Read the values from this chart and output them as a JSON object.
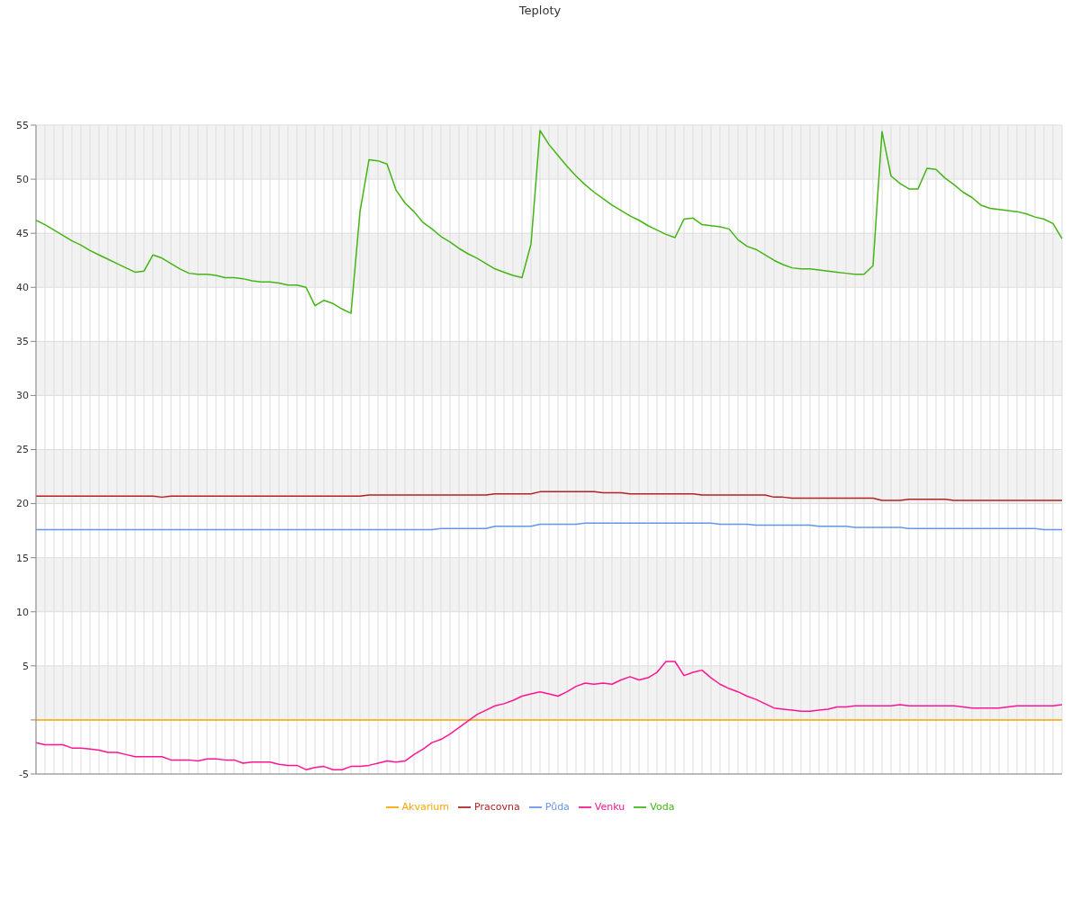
{
  "chart_data": {
    "type": "line",
    "title": "Teploty",
    "categories": [
      null,
      null,
      null,
      null,
      null,
      null,
      null,
      null,
      null,
      null,
      null,
      null,
      null,
      null,
      null,
      null,
      null,
      null,
      null,
      null,
      null,
      null,
      null,
      null,
      null,
      null,
      null,
      null,
      null,
      null,
      null,
      null,
      null,
      null,
      null,
      null,
      null,
      null,
      null,
      null,
      null,
      null,
      null,
      null,
      null,
      null,
      null,
      null,
      null,
      null,
      null,
      null,
      null,
      null,
      null,
      null,
      null,
      null,
      null,
      null,
      null,
      null,
      null,
      null,
      null,
      null,
      null,
      null,
      null,
      null,
      null,
      null,
      null,
      null,
      null,
      null,
      null,
      null,
      null,
      null,
      null,
      null,
      null,
      null,
      null,
      null,
      null,
      null,
      null,
      null,
      null,
      null,
      null,
      null,
      null,
      null,
      null,
      null,
      null,
      null,
      null,
      null,
      null,
      null,
      null,
      null,
      null,
      null,
      null,
      null,
      null,
      null,
      null,
      null,
      null
    ],
    "series": [
      {
        "name": "Půda",
        "color": "#6495ed",
        "values": [
          17.6,
          17.6,
          17.6,
          17.6,
          17.6,
          17.6,
          17.6,
          17.6,
          17.6,
          17.6,
          17.6,
          17.6,
          17.6,
          17.6,
          17.6,
          17.6,
          17.6,
          17.6,
          17.6,
          17.6,
          17.6,
          17.6,
          17.6,
          17.6,
          17.6,
          17.6,
          17.6,
          17.6,
          17.6,
          17.6,
          17.6,
          17.6,
          17.6,
          17.6,
          17.6,
          17.6,
          17.6,
          17.6,
          17.6,
          17.6,
          17.6,
          17.6,
          17.6,
          17.6,
          17.6,
          17.7,
          17.7,
          17.7,
          17.7,
          17.7,
          17.7,
          17.9,
          17.9,
          17.9,
          17.9,
          17.9,
          18.1,
          18.1,
          18.1,
          18.1,
          18.1,
          18.2,
          18.2,
          18.2,
          18.2,
          18.2,
          18.2,
          18.2,
          18.2,
          18.2,
          18.2,
          18.2,
          18.2,
          18.2,
          18.2,
          18.2,
          18.1,
          18.1,
          18.1,
          18.1,
          18.0,
          18.0,
          18.0,
          18.0,
          18.0,
          18.0,
          18.0,
          17.9,
          17.9,
          17.9,
          17.9,
          17.8,
          17.8,
          17.8,
          17.8,
          17.8,
          17.8,
          17.7,
          17.7,
          17.7,
          17.7,
          17.7,
          17.7,
          17.7,
          17.7,
          17.7,
          17.7,
          17.7,
          17.7,
          17.7,
          17.7,
          17.7,
          17.6,
          17.6,
          17.6
        ]
      },
      {
        "name": "Voda",
        "color": "#44b514",
        "values": [
          46.2,
          45.8,
          45.3,
          44.8,
          44.3,
          43.9,
          43.4,
          43.0,
          42.6,
          42.2,
          41.8,
          41.4,
          41.5,
          43.0,
          42.7,
          42.2,
          41.7,
          41.3,
          41.2,
          41.2,
          41.1,
          40.9,
          40.9,
          40.8,
          40.6,
          40.5,
          40.5,
          40.4,
          40.2,
          40.2,
          40.0,
          38.3,
          38.8,
          38.5,
          38.0,
          37.6,
          47.0,
          51.8,
          51.7,
          51.4,
          49.0,
          47.8,
          47.0,
          46.0,
          45.4,
          44.7,
          44.2,
          43.6,
          43.1,
          42.7,
          42.2,
          41.7,
          41.4,
          41.1,
          40.9,
          44.0,
          54.5,
          53.2,
          52.2,
          51.2,
          50.3,
          49.5,
          48.8,
          48.2,
          47.6,
          47.1,
          46.6,
          46.2,
          45.7,
          45.3,
          44.9,
          44.6,
          46.3,
          46.4,
          45.8,
          45.7,
          45.6,
          45.4,
          44.4,
          43.8,
          43.5,
          43.0,
          42.5,
          42.1,
          41.8,
          41.7,
          41.7,
          41.6,
          41.5,
          41.4,
          41.3,
          41.2,
          41.2,
          42.0,
          54.4,
          50.3,
          49.6,
          49.1,
          49.1,
          51.0,
          50.9,
          50.1,
          49.5,
          48.8,
          48.3,
          47.6,
          47.3,
          47.2,
          47.1,
          47.0,
          46.8,
          46.5,
          46.3,
          45.9,
          44.5
        ]
      },
      {
        "name": "Pracovna",
        "color": "#b22222",
        "values": [
          20.7,
          20.7,
          20.7,
          20.7,
          20.7,
          20.7,
          20.7,
          20.7,
          20.7,
          20.7,
          20.7,
          20.7,
          20.7,
          20.7,
          20.6,
          20.7,
          20.7,
          20.7,
          20.7,
          20.7,
          20.7,
          20.7,
          20.7,
          20.7,
          20.7,
          20.7,
          20.7,
          20.7,
          20.7,
          20.7,
          20.7,
          20.7,
          20.7,
          20.7,
          20.7,
          20.7,
          20.7,
          20.8,
          20.8,
          20.8,
          20.8,
          20.8,
          20.8,
          20.8,
          20.8,
          20.8,
          20.8,
          20.8,
          20.8,
          20.8,
          20.8,
          20.9,
          20.9,
          20.9,
          20.9,
          20.9,
          21.1,
          21.1,
          21.1,
          21.1,
          21.1,
          21.1,
          21.1,
          21.0,
          21.0,
          21.0,
          20.9,
          20.9,
          20.9,
          20.9,
          20.9,
          20.9,
          20.9,
          20.9,
          20.8,
          20.8,
          20.8,
          20.8,
          20.8,
          20.8,
          20.8,
          20.8,
          20.6,
          20.6,
          20.5,
          20.5,
          20.5,
          20.5,
          20.5,
          20.5,
          20.5,
          20.5,
          20.5,
          20.5,
          20.3,
          20.3,
          20.3,
          20.4,
          20.4,
          20.4,
          20.4,
          20.4,
          20.3,
          20.3,
          20.3,
          20.3,
          20.3,
          20.3,
          20.3,
          20.3,
          20.3,
          20.3,
          20.3,
          20.3,
          20.3
        ]
      },
      {
        "name": "Akvarium",
        "color": "#ffa500",
        "values": [
          0,
          0,
          0,
          0,
          0,
          0,
          0,
          0,
          0,
          0,
          0,
          0,
          0,
          0,
          0,
          0,
          0,
          0,
          0,
          0,
          0,
          0,
          0,
          0,
          0,
          0,
          0,
          0,
          0,
          0,
          0,
          0,
          0,
          0,
          0,
          0,
          0,
          0,
          0,
          0,
          0,
          0,
          0,
          0,
          0,
          0,
          0,
          0,
          0,
          0,
          0,
          0,
          0,
          0,
          0,
          0,
          0,
          0,
          0,
          0,
          0,
          0,
          0,
          0,
          0,
          0,
          0,
          0,
          0,
          0,
          0,
          0,
          0,
          0,
          0,
          0,
          0,
          0,
          0,
          0,
          0,
          0,
          0,
          0,
          0,
          0,
          0,
          0,
          0,
          0,
          0,
          0,
          0,
          0,
          0,
          0,
          0,
          0,
          0,
          0,
          0,
          0,
          0,
          0,
          0,
          0,
          0,
          0,
          0,
          0,
          0,
          0,
          0,
          0,
          0
        ]
      },
      {
        "name": "Venku",
        "color": "#ff1493",
        "values": [
          -2.1,
          -2.3,
          -2.3,
          -2.3,
          -2.6,
          -2.6,
          -2.7,
          -2.8,
          -3.0,
          -3.0,
          -3.2,
          -3.4,
          -3.4,
          -3.4,
          -3.4,
          -3.7,
          -3.7,
          -3.7,
          -3.8,
          -3.6,
          -3.6,
          -3.7,
          -3.7,
          -4.0,
          -3.9,
          -3.9,
          -3.9,
          -4.1,
          -4.2,
          -4.2,
          -4.6,
          -4.4,
          -4.3,
          -4.6,
          -4.6,
          -4.3,
          -4.3,
          -4.2,
          -4.0,
          -3.8,
          -3.9,
          -3.8,
          -3.2,
          -2.7,
          -2.1,
          -1.8,
          -1.3,
          -0.7,
          -0.1,
          0.5,
          0.9,
          1.3,
          1.5,
          1.8,
          2.2,
          2.4,
          2.6,
          2.4,
          2.2,
          2.6,
          3.1,
          3.4,
          3.3,
          3.4,
          3.3,
          3.7,
          4.0,
          3.7,
          3.9,
          4.4,
          5.4,
          5.4,
          4.1,
          4.4,
          4.6,
          3.9,
          3.3,
          2.9,
          2.6,
          2.2,
          1.9,
          1.5,
          1.1,
          1.0,
          0.9,
          0.8,
          0.8,
          0.9,
          1.0,
          1.2,
          1.2,
          1.3,
          1.3,
          1.3,
          1.3,
          1.3,
          1.4,
          1.3,
          1.3,
          1.3,
          1.3,
          1.3,
          1.3,
          1.2,
          1.1,
          1.1,
          1.1,
          1.1,
          1.2,
          1.3,
          1.3,
          1.3,
          1.3,
          1.3,
          1.4
        ]
      }
    ],
    "ylim": [
      -5,
      55
    ],
    "yticks": [
      -5,
      {
        "value": 0,
        "label": null
      },
      5,
      10,
      15,
      20,
      25,
      30,
      35,
      40,
      45,
      50,
      55
    ],
    "grid": true,
    "legend": "bottom",
    "marker": "none",
    "line_style": "solid"
  }
}
